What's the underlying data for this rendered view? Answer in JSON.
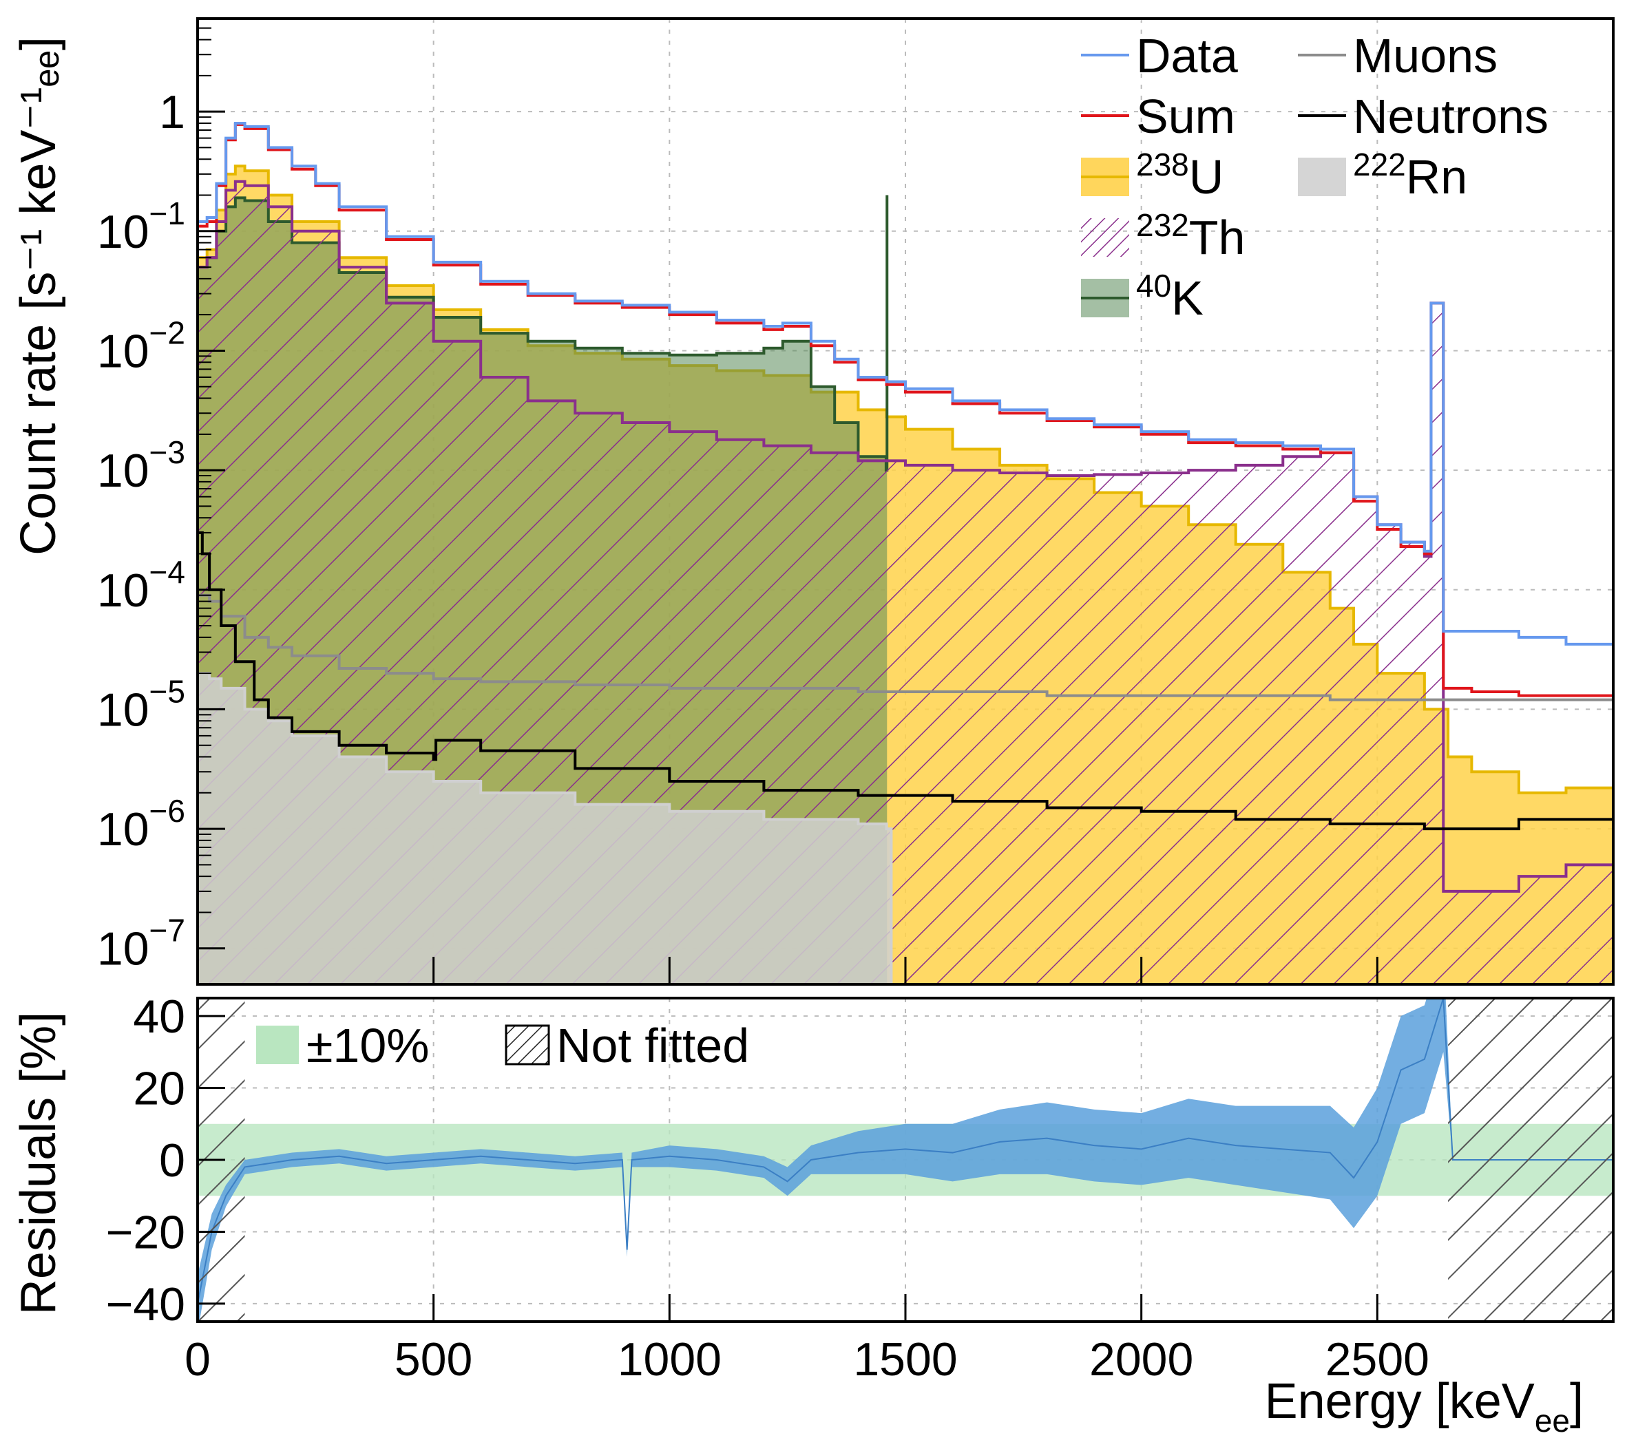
{
  "colors": {
    "data": "#6699ee",
    "sum": "#e0151b",
    "u238": "#ffd24a",
    "u238_line": "#e6b800",
    "th232": "#8a2f8c",
    "k40_fill": "#5a8a5a",
    "k40_line": "#2d5a2d",
    "muons": "#8c8c8c",
    "neutrons": "#000000",
    "rn222": "#d0d0d0",
    "band": "#b9e6c0",
    "residuals": "#5aa0dc",
    "grid": "#bbbbbb"
  },
  "chart_data": [
    {
      "type": "line",
      "panel": "spectrum",
      "xlabel_main": "Energy [keV",
      "xlabel_sub": "ee",
      "xlabel_close": "]",
      "ylabel": "Count rate [s⁻¹ keV⁻¹ₑₑ]",
      "xlim": [
        0,
        3000
      ],
      "ylim": [
        5e-08,
        6
      ],
      "yscale": "log",
      "grid": true,
      "yticks": [
        {
          "value": 1,
          "label": "1"
        },
        {
          "value": 0.1,
          "label": "10",
          "exp": "−1"
        },
        {
          "value": 0.01,
          "label": "10",
          "exp": "−2"
        },
        {
          "value": 0.001,
          "label": "10",
          "exp": "−3"
        },
        {
          "value": 0.0001,
          "label": "10",
          "exp": "−4"
        },
        {
          "value": 1e-05,
          "label": "10",
          "exp": "−5"
        },
        {
          "value": 1e-06,
          "label": "10",
          "exp": "−6"
        },
        {
          "value": 1e-07,
          "label": "10",
          "exp": "−7"
        }
      ],
      "legend": {
        "placement": "top-right",
        "entries": [
          {
            "label": "Data",
            "sup": "",
            "style": "line",
            "color": "#6699ee"
          },
          {
            "label": "Sum",
            "sup": "",
            "style": "line",
            "color": "#e0151b"
          },
          {
            "label": "U",
            "sup": "238",
            "style": "fill",
            "color": "#ffd24a"
          },
          {
            "label": "Th",
            "sup": "232",
            "style": "hatch",
            "color": "#8a2f8c"
          },
          {
            "label": "K",
            "sup": "40",
            "style": "fill",
            "color": "#5a8a5a"
          },
          {
            "label": "Muons",
            "sup": "",
            "style": "line",
            "color": "#8c8c8c"
          },
          {
            "label": "Neutrons",
            "sup": "",
            "style": "line",
            "color": "#000000"
          },
          {
            "label": "Rn",
            "sup": "222",
            "style": "fill",
            "color": "#d0d0d0"
          }
        ]
      },
      "series": [
        {
          "name": "Data",
          "x": [
            0,
            20,
            40,
            60,
            80,
            100,
            150,
            200,
            250,
            300,
            400,
            500,
            600,
            700,
            800,
            900,
            1000,
            1100,
            1200,
            1240,
            1300,
            1350,
            1400,
            1460,
            1500,
            1600,
            1700,
            1800,
            1900,
            2000,
            2100,
            2200,
            2300,
            2380,
            2450,
            2500,
            2550,
            2600,
            2614,
            2640,
            2700,
            2800,
            2900,
            3000
          ],
          "y": [
            0.12,
            0.13,
            0.25,
            0.6,
            0.8,
            0.75,
            0.5,
            0.35,
            0.25,
            0.16,
            0.09,
            0.055,
            0.038,
            0.03,
            0.026,
            0.024,
            0.021,
            0.018,
            0.016,
            0.017,
            0.012,
            0.0085,
            0.006,
            0.0055,
            0.0048,
            0.0038,
            0.0032,
            0.0027,
            0.0024,
            0.0021,
            0.0018,
            0.0017,
            0.0016,
            0.0015,
            0.0006,
            0.00035,
            0.00025,
            0.00021,
            0.025,
            4.5e-05,
            4.5e-05,
            4e-05,
            3.5e-05,
            3.5e-05
          ]
        },
        {
          "name": "Sum",
          "x": [
            0,
            20,
            40,
            60,
            80,
            100,
            150,
            200,
            250,
            300,
            400,
            500,
            600,
            700,
            800,
            900,
            1000,
            1100,
            1200,
            1240,
            1300,
            1350,
            1400,
            1460,
            1500,
            1600,
            1700,
            1800,
            1900,
            2000,
            2100,
            2200,
            2300,
            2380,
            2450,
            2500,
            2550,
            2600,
            2614,
            2640,
            2700,
            2800,
            2900,
            3000
          ],
          "y": [
            0.11,
            0.12,
            0.24,
            0.58,
            0.78,
            0.72,
            0.48,
            0.33,
            0.24,
            0.15,
            0.085,
            0.052,
            0.036,
            0.029,
            0.025,
            0.023,
            0.02,
            0.017,
            0.015,
            0.016,
            0.011,
            0.008,
            0.0057,
            0.0052,
            0.0045,
            0.0036,
            0.003,
            0.0026,
            0.0023,
            0.002,
            0.0017,
            0.0016,
            0.0015,
            0.0014,
            0.00055,
            0.00032,
            0.00023,
            0.0002,
            0.025,
            1.5e-05,
            1.4e-05,
            1.3e-05,
            1.3e-05,
            1.3e-05
          ]
        },
        {
          "name": "238U",
          "x": [
            0,
            20,
            40,
            60,
            80,
            100,
            150,
            200,
            300,
            400,
            500,
            600,
            700,
            800,
            900,
            1000,
            1100,
            1200,
            1300,
            1400,
            1460,
            1500,
            1600,
            1700,
            1800,
            1900,
            2000,
            2100,
            2200,
            2300,
            2400,
            2450,
            2500,
            2600,
            2650,
            2700,
            2800,
            2900,
            3000
          ],
          "y": [
            0.06,
            0.07,
            0.15,
            0.3,
            0.35,
            0.32,
            0.2,
            0.12,
            0.06,
            0.035,
            0.022,
            0.015,
            0.011,
            0.0095,
            0.0085,
            0.0075,
            0.0068,
            0.0062,
            0.0045,
            0.0032,
            0.0028,
            0.0022,
            0.0015,
            0.0011,
            0.00085,
            0.00065,
            0.0005,
            0.00035,
            0.00024,
            0.00014,
            7e-05,
            3.5e-05,
            2e-05,
            1e-05,
            4e-06,
            3e-06,
            2e-06,
            2.2e-06,
            1e-06
          ]
        },
        {
          "name": "232Th",
          "x": [
            0,
            20,
            40,
            60,
            80,
            100,
            150,
            200,
            300,
            400,
            500,
            600,
            700,
            800,
            900,
            1000,
            1100,
            1200,
            1300,
            1400,
            1500,
            1600,
            1700,
            1800,
            1900,
            2000,
            2100,
            2200,
            2300,
            2380,
            2450,
            2500,
            2550,
            2600,
            2614,
            2640,
            2700,
            2800,
            2900,
            3000
          ],
          "y": [
            0.05,
            0.06,
            0.12,
            0.22,
            0.26,
            0.24,
            0.16,
            0.1,
            0.05,
            0.025,
            0.012,
            0.006,
            0.0038,
            0.003,
            0.0025,
            0.0021,
            0.0018,
            0.0016,
            0.0014,
            0.0012,
            0.0011,
            0.001,
            0.00095,
            0.0009,
            0.00092,
            0.00095,
            0.001,
            0.0011,
            0.0013,
            0.0014,
            0.0006,
            0.00035,
            0.00025,
            0.00019,
            0.025,
            3e-07,
            3e-07,
            4e-07,
            5e-07,
            5e-07
          ]
        },
        {
          "name": "40K",
          "x": [
            0,
            20,
            40,
            60,
            80,
            100,
            150,
            200,
            300,
            400,
            500,
            600,
            700,
            800,
            900,
            1000,
            1100,
            1200,
            1240,
            1300,
            1350,
            1400,
            1459,
            1461
          ],
          "y": [
            0.05,
            0.06,
            0.1,
            0.16,
            0.19,
            0.18,
            0.12,
            0.08,
            0.045,
            0.028,
            0.019,
            0.014,
            0.012,
            0.0105,
            0.0095,
            0.0092,
            0.0095,
            0.0105,
            0.012,
            0.005,
            0.0025,
            0.0013,
            0.001,
            0.2
          ]
        },
        {
          "name": "Muons",
          "x": [
            0,
            25,
            50,
            100,
            150,
            200,
            300,
            400,
            500,
            600,
            800,
            1000,
            1200,
            1400,
            1600,
            1800,
            2000,
            2200,
            2400,
            2600,
            2700,
            2800,
            3000
          ],
          "y": [
            9e-05,
            8e-05,
            6e-05,
            4e-05,
            3.3e-05,
            2.8e-05,
            2.2e-05,
            2e-05,
            1.8e-05,
            1.7e-05,
            1.6e-05,
            1.5e-05,
            1.5e-05,
            1.4e-05,
            1.4e-05,
            1.3e-05,
            1.3e-05,
            1.3e-05,
            1.2e-05,
            1.2e-05,
            1.2e-05,
            1.2e-05,
            1.2e-05
          ]
        },
        {
          "name": "Neutrons",
          "x": [
            0,
            10,
            25,
            50,
            80,
            120,
            150,
            200,
            300,
            400,
            500,
            505,
            600,
            800,
            1000,
            1200,
            1400,
            1600,
            1800,
            2000,
            2200,
            2400,
            2600,
            2640,
            2800,
            3000
          ],
          "y": [
            0.0003,
            0.0002,
            0.0001,
            5e-05,
            2.5e-05,
            1.2e-05,
            8.5e-06,
            6.5e-06,
            5e-06,
            4.3e-06,
            3.8e-06,
            5.5e-06,
            4.5e-06,
            3.2e-06,
            2.5e-06,
            2.1e-06,
            1.9e-06,
            1.7e-06,
            1.5e-06,
            1.4e-06,
            1.2e-06,
            1.1e-06,
            1e-06,
            1e-06,
            1.2e-06,
            9e-07
          ]
        },
        {
          "name": "222Rn",
          "x": [
            0,
            25,
            50,
            100,
            150,
            200,
            300,
            400,
            500,
            600,
            800,
            1000,
            1200,
            1400,
            1460,
            1470,
            3000
          ],
          "y": [
            2e-05,
            1.8e-05,
            1.5e-05,
            1e-05,
            8e-06,
            6e-06,
            4e-06,
            3e-06,
            2.5e-06,
            2e-06,
            1.6e-06,
            1.4e-06,
            1.2e-06,
            1.1e-06,
            1e-06,
            5e-08,
            5e-08
          ]
        }
      ]
    },
    {
      "type": "area",
      "panel": "residuals",
      "ylabel": "Residuals [%]",
      "xlim": [
        0,
        3000
      ],
      "ylim": [
        -45,
        45
      ],
      "grid": true,
      "xticks": [
        {
          "value": 0,
          "label": "0"
        },
        {
          "value": 500,
          "label": "500"
        },
        {
          "value": 1000,
          "label": "1000"
        },
        {
          "value": 1500,
          "label": "1500"
        },
        {
          "value": 2000,
          "label": "2000"
        },
        {
          "value": 2500,
          "label": "2500"
        }
      ],
      "yticks": [
        {
          "value": 40,
          "label": "40"
        },
        {
          "value": 20,
          "label": "20"
        },
        {
          "value": 0,
          "label": "0"
        },
        {
          "value": -20,
          "label": "−20"
        },
        {
          "value": -40,
          "label": "−40"
        }
      ],
      "band": {
        "low": -10,
        "high": 10,
        "label": "±10%"
      },
      "not_fitted": {
        "label": "Not fitted",
        "ranges": [
          [
            0,
            100
          ],
          [
            2650,
            3000
          ]
        ]
      },
      "x": [
        0,
        30,
        60,
        100,
        150,
        200,
        300,
        400,
        500,
        600,
        700,
        800,
        900,
        910,
        920,
        1000,
        1100,
        1200,
        1250,
        1300,
        1400,
        1500,
        1600,
        1700,
        1800,
        1900,
        2000,
        2100,
        2200,
        2300,
        2400,
        2450,
        2500,
        2550,
        2600,
        2640,
        2660,
        3000
      ],
      "y": [
        -40,
        -20,
        -10,
        -2,
        -1,
        0,
        1,
        -1,
        0,
        1,
        0,
        -1,
        0,
        -25,
        0,
        1,
        0,
        -2,
        -6,
        0,
        2,
        3,
        2,
        5,
        6,
        4,
        3,
        6,
        4,
        3,
        2,
        -5,
        5,
        25,
        28,
        45,
        0,
        0
      ],
      "err": [
        8,
        5,
        3,
        2,
        2,
        2,
        2,
        2,
        2,
        2,
        2,
        2,
        2,
        2,
        2,
        3,
        3,
        3,
        4,
        4,
        6,
        7,
        8,
        9,
        10,
        10,
        10,
        11,
        11,
        12,
        13,
        14,
        15,
        15,
        15,
        15,
        0,
        0
      ]
    }
  ]
}
